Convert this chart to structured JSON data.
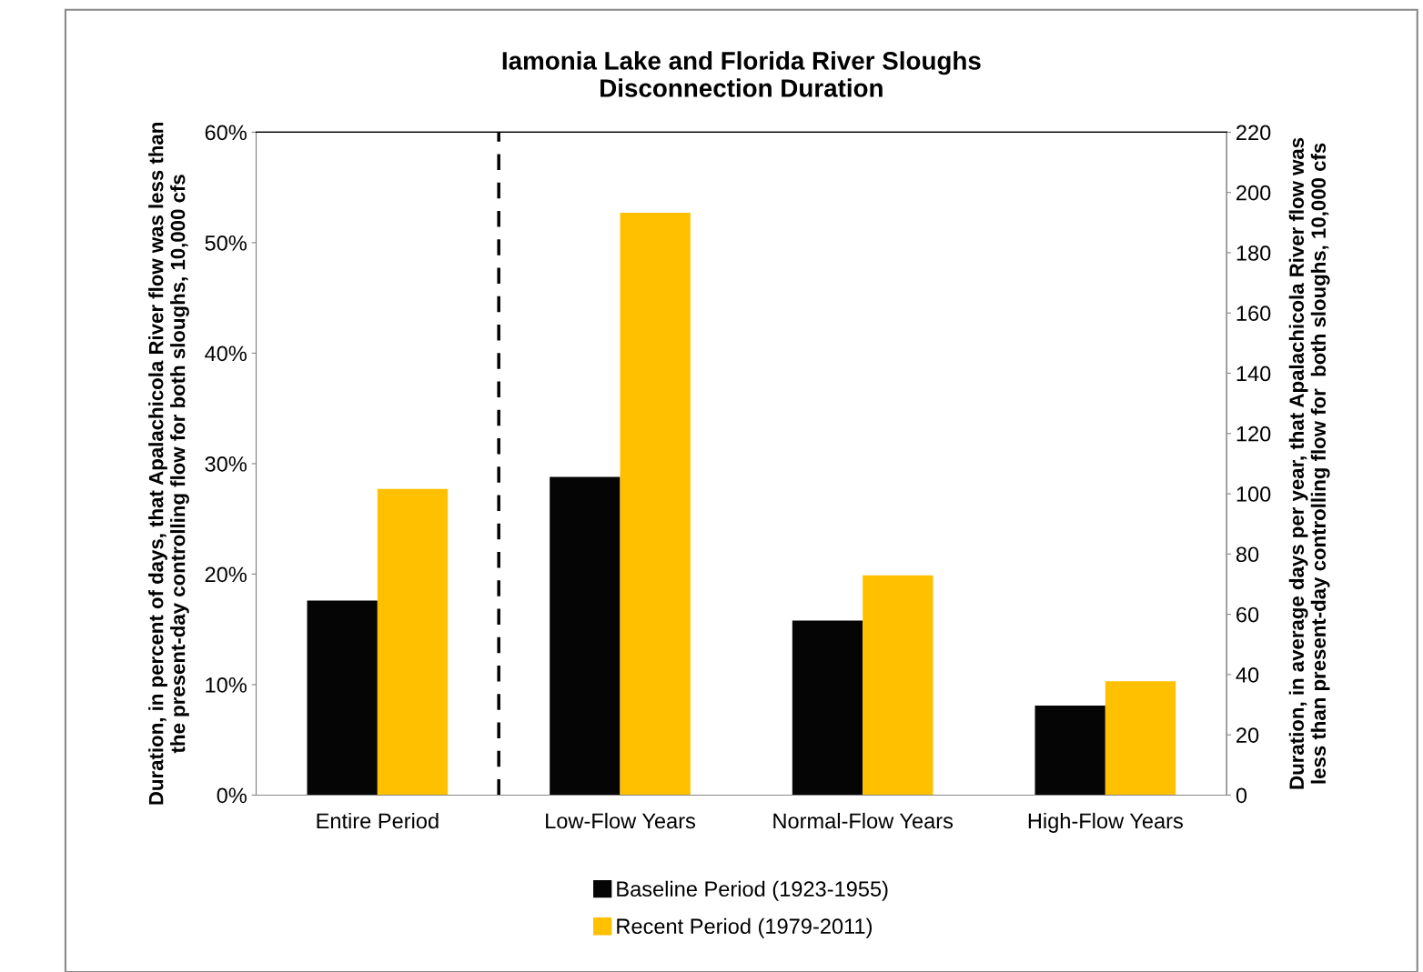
{
  "chart_data": {
    "type": "bar",
    "title": "Iamonia Lake and Florida River Sloughs\nDisconnection Duration",
    "ylabel": "Duration, in percent of days, that Apalachicola River flow was less than\nthe present-day controlling flow for both sloughs, 10,000 cfs",
    "y2label": "Duration, in average days per year, that Apalachicola River flow was\nless than present-day controlling flow for  both sloughs, 10,000 cfs",
    "categories": [
      "Entire Period",
      "Low-Flow Years",
      "Normal-Flow Years",
      "High-Flow Years"
    ],
    "series": [
      {
        "name": "Baseline Period (1923-1955)",
        "color": "#050505",
        "values": [
          17.6,
          28.8,
          15.8,
          8.1
        ]
      },
      {
        "name": "Recent Period (1979-2011)",
        "color": "#ffc000",
        "values": [
          27.7,
          52.7,
          19.9,
          10.3
        ]
      }
    ],
    "ylim": [
      0,
      60
    ],
    "yticks": [
      {
        "value": 0,
        "label": "0%"
      },
      {
        "value": 10,
        "label": "10%"
      },
      {
        "value": 20,
        "label": "20%"
      },
      {
        "value": 30,
        "label": "30%"
      },
      {
        "value": 40,
        "label": "40%"
      },
      {
        "value": 50,
        "label": "50%"
      },
      {
        "value": 60,
        "label": "60%"
      }
    ],
    "y2lim": [
      0,
      220
    ],
    "y2ticks": [
      0,
      20,
      40,
      60,
      80,
      100,
      120,
      140,
      160,
      180,
      200,
      220
    ],
    "legend": "bottom",
    "grid": false
  }
}
